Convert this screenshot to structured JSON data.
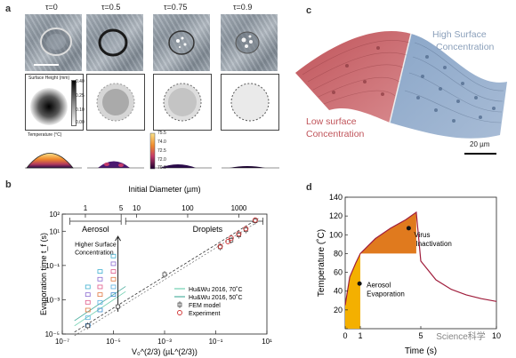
{
  "panel_a": {
    "letter": "a",
    "taus": [
      "τ=0",
      "τ=0.5",
      "τ=0.75",
      "τ=0.9"
    ],
    "height_colorbar": {
      "title": "Surface Height (mm)",
      "ticks": [
        "0.40",
        "0.25",
        "0.10",
        "0.00"
      ]
    },
    "temperature_colorbar": {
      "title": "Temperature (°C)",
      "ticks": [
        "75.5",
        "74.0",
        "72.5",
        "72.0",
        "70.0"
      ]
    }
  },
  "panel_b": {
    "letter": "b",
    "top_axis_title": "Initial Diameter (µm)",
    "top_ticks": [
      "1",
      "5",
      "10",
      "100",
      "1000"
    ],
    "aerosol_label": "Aerosol",
    "droplets_label": "Droplets",
    "annotation": [
      "Higher Surface",
      "Concentration"
    ],
    "legend": [
      {
        "label": "Hu&Wu 2016, 70˚C",
        "color": "#6fd0b0"
      },
      {
        "label": "Hu&Wu 2016, 50˚C",
        "color": "#4fb0a0"
      },
      {
        "label": "FEM model",
        "color": "#333333"
      },
      {
        "label": "Experiment",
        "color": "#d03030"
      }
    ]
  },
  "panel_c": {
    "letter": "c",
    "high_label": [
      "High Surface",
      "Concentration"
    ],
    "low_label": [
      "Low surface",
      "Concentration"
    ],
    "scale_bar": "20 µm"
  },
  "panel_d": {
    "letter": "d",
    "virus_label": [
      "Virus",
      "Inactivation"
    ],
    "aerosol_label": [
      "Aerosol",
      "Evaporation"
    ],
    "watermark": "Science科学"
  },
  "chart_data": [
    {
      "type": "scatter",
      "panel": "b",
      "xlabel": "V₀^(2/3)  (µL^(2/3))",
      "ylabel": "Evaporation time  t_f (s)",
      "x_scale": "log",
      "y_scale": "log",
      "xlim": [
        1e-07,
        10
      ],
      "ylim": [
        1e-05,
        100
      ],
      "x_ticks": [
        "10⁻⁷",
        "10⁻⁵",
        "10⁻³",
        "10⁻¹",
        "10¹"
      ],
      "y_ticks": [
        "10²",
        "10¹",
        "10⁻¹",
        "10⁻³",
        "10⁻⁵"
      ],
      "series": [
        {
          "name": "FEM model",
          "x": [
            1e-06,
            1.5e-05,
            0.001,
            0.15,
            0.4,
            0.8,
            1.5,
            3.5
          ],
          "y": [
            3e-05,
            0.0004,
            0.03,
            1.2,
            3,
            6,
            12,
            40
          ]
        },
        {
          "name": "Experiment",
          "x": [
            0.15,
            0.3,
            0.4,
            0.8,
            1.5,
            3.5
          ],
          "y": [
            1.3,
            2.5,
            4,
            7,
            14,
            45
          ]
        }
      ]
    },
    {
      "type": "area",
      "panel": "d",
      "xlabel": "Time (s)",
      "ylabel": "Temperature (˚C)",
      "xlim": [
        0,
        10
      ],
      "ylim": [
        0,
        140
      ],
      "x_ticks": [
        "0",
        "1",
        "5",
        "10"
      ],
      "y_ticks": [
        "0",
        "20",
        "40",
        "60",
        "80",
        "100",
        "120",
        "140"
      ],
      "series": [
        {
          "name": "",
          "x": [
            0,
            0.3,
            0.7,
            1,
            1.5,
            2,
            3,
            4,
            4.7,
            5,
            6,
            7,
            8,
            9,
            10
          ],
          "y": [
            25,
            55,
            70,
            80,
            88,
            96,
            107,
            116,
            124,
            72,
            52,
            42,
            36,
            32,
            29
          ]
        }
      ]
    }
  ]
}
